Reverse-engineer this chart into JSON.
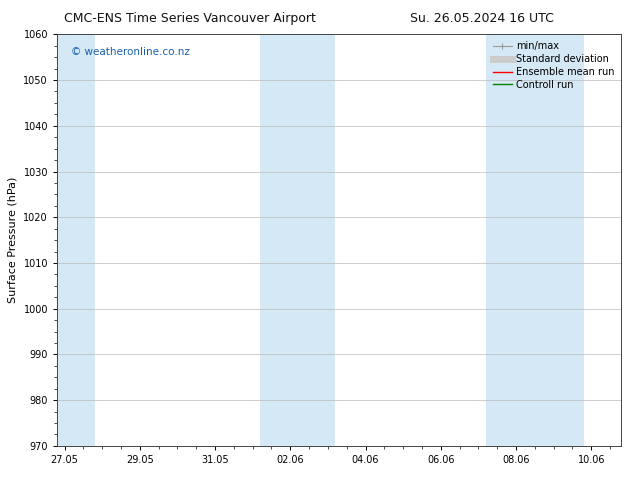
{
  "title_left": "CMC-ENS Time Series Vancouver Airport",
  "title_right": "Su. 26.05.2024 16 UTC",
  "ylabel": "Surface Pressure (hPa)",
  "ylim": [
    970,
    1060
  ],
  "yticks": [
    970,
    980,
    990,
    1000,
    1010,
    1020,
    1030,
    1040,
    1050,
    1060
  ],
  "xtick_labels": [
    "27.05",
    "29.05",
    "31.05",
    "02.06",
    "04.06",
    "06.06",
    "08.06",
    "10.06"
  ],
  "xtick_positions": [
    0,
    2,
    4,
    6,
    8,
    10,
    12,
    14
  ],
  "xlim": [
    -0.2,
    14.8
  ],
  "shaded_bands": [
    {
      "x_start": -0.2,
      "x_end": 0.8,
      "color": "#d5e8f5"
    },
    {
      "x_start": 5.2,
      "x_end": 7.2,
      "color": "#d5e8f5"
    },
    {
      "x_start": 11.2,
      "x_end": 13.8,
      "color": "#d5e8f5"
    }
  ],
  "watermark_text": "© weatheronline.co.nz",
  "watermark_color": "#1a5fa8",
  "watermark_fontsize": 7.5,
  "legend_items": [
    {
      "label": "min/max",
      "color": "#aaaaaa",
      "lw": 1
    },
    {
      "label": "Standard deviation",
      "color": "#cccccc",
      "lw": 5
    },
    {
      "label": "Ensemble mean run",
      "color": "red",
      "lw": 1
    },
    {
      "label": "Controll run",
      "color": "green",
      "lw": 1
    }
  ],
  "bg_color": "#ffffff",
  "grid_color": "#bbbbbb",
  "title_fontsize": 9,
  "ylabel_fontsize": 8,
  "tick_fontsize": 7,
  "legend_fontsize": 7
}
